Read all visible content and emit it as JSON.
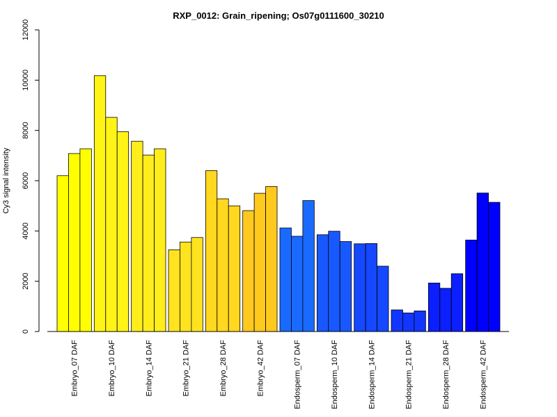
{
  "chart_data": {
    "type": "bar",
    "title": "RXP_0012: Grain_ripening; Os07g0111600_30210",
    "xlabel": "",
    "ylabel": "Cy3 signal intensity",
    "ylim": [
      0,
      12000
    ],
    "yticks": [
      0,
      2000,
      4000,
      6000,
      8000,
      10000,
      12000
    ],
    "grid": false,
    "legend": "none",
    "bars_per_group": 3,
    "groups": [
      {
        "label": "Embryo_07 DAF",
        "values": [
          6200,
          7080,
          7270
        ],
        "color": "#FFFF00"
      },
      {
        "label": "Embryo_10 DAF",
        "values": [
          10180,
          8520,
          7950
        ],
        "color": "#FFF416"
      },
      {
        "label": "Embryo_14 DAF",
        "values": [
          7570,
          7020,
          7270
        ],
        "color": "#FFED1C"
      },
      {
        "label": "Embryo_21 DAF",
        "values": [
          3250,
          3560,
          3740
        ],
        "color": "#FFE31E"
      },
      {
        "label": "Embryo_28 DAF",
        "values": [
          6400,
          5280,
          5000
        ],
        "color": "#FFD81F"
      },
      {
        "label": "Embryo_42 DAF",
        "values": [
          4810,
          5500,
          5770
        ],
        "color": "#FFC91E"
      },
      {
        "label": "Endosperm_07 DAF",
        "values": [
          4120,
          3790,
          5210
        ],
        "color": "#1A6AFF"
      },
      {
        "label": "Endosperm_10 DAF",
        "values": [
          3850,
          3990,
          3580
        ],
        "color": "#1859FF"
      },
      {
        "label": "Endosperm_14 DAF",
        "values": [
          3490,
          3500,
          2600
        ],
        "color": "#1548FF"
      },
      {
        "label": "Endosperm_21 DAF",
        "values": [
          860,
          740,
          820
        ],
        "color": "#1236FF"
      },
      {
        "label": "Endosperm_28 DAF",
        "values": [
          1930,
          1720,
          2300
        ],
        "color": "#0B1FFF"
      },
      {
        "label": "Endosperm_42 DAF",
        "values": [
          3640,
          5510,
          5140
        ],
        "color": "#0000FF"
      }
    ]
  }
}
